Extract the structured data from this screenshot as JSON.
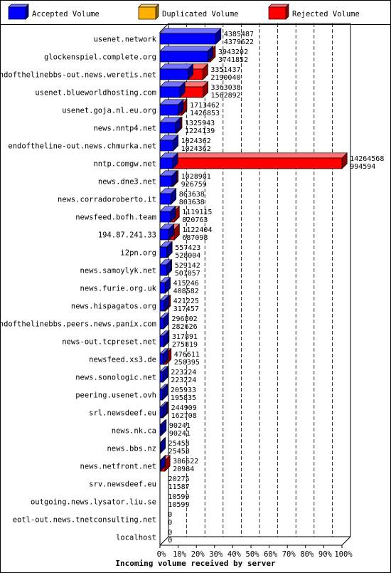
{
  "chart_data": {
    "type": "bar",
    "orientation": "horizontal",
    "stacked": true,
    "xlabel": "Incoming volume received by server",
    "xticks": [
      "0%",
      "10%",
      "20%",
      "30%",
      "40%",
      "50%",
      "60%",
      "70%",
      "80%",
      "90%",
      "100%"
    ],
    "xlim": [
      0,
      14264568
    ],
    "legend": {
      "placement": "top",
      "entries": [
        {
          "name": "Accepted Volume",
          "color": "#0000ff"
        },
        {
          "name": "Duplicated Volume",
          "color": "#ffb000"
        },
        {
          "name": "Rejected Volume",
          "color": "#ff0000"
        }
      ]
    },
    "categories": [
      "usenet.network",
      "glockenspiel.complete.org",
      "endofthelinebbs-out.news.weretis.net",
      "usenet.blueworldhosting.com",
      "usenet.goja.nl.eu.org",
      "news.nntp4.net",
      "endoftheline-out.news.chmurka.net",
      "nntp.comgw.net",
      "news.dne3.net",
      "news.corradoroberto.it",
      "newsfeed.bofh.team",
      "194.87.241.33",
      "i2pn.org",
      "news.samoylyk.net",
      "news.furie.org.uk",
      "news.hispagatos.org",
      "endofthelinebbs.peers.news.panix.com",
      "news-out.tcpreset.net",
      "newsfeed.xs3.de",
      "news.sonologic.net",
      "peering.usenet.ovh",
      "srl.newsdeef.eu",
      "news.nk.ca",
      "news.bbs.nz",
      "news.netfront.net",
      "srv.newsdeef.eu",
      "outgoing.news.lysator.liu.se",
      "eotl-out.news.tnetconsulting.net",
      "localhost"
    ],
    "total": [
      4385487,
      3943202,
      3351437,
      3363038,
      1713462,
      1325943,
      1024362,
      14264568,
      1028901,
      863638,
      1119115,
      1122404,
      557423,
      529142,
      415246,
      421225,
      296802,
      317891,
      476611,
      223224,
      205933,
      244909,
      90241,
      25458,
      386622,
      20275,
      10599,
      0,
      0
    ],
    "accepted": [
      4379622,
      3741852,
      2190040,
      1562892,
      1426853,
      1224139,
      1024362,
      994594,
      926759,
      863638,
      820763,
      687098,
      528004,
      501057,
      408582,
      317457,
      282626,
      275819,
      250395,
      223224,
      195835,
      162708,
      90241,
      25458,
      20984,
      11587,
      10599,
      0,
      0
    ],
    "total_labels": [
      "4385487",
      "3943202",
      "3351437",
      "3363038",
      "1713462",
      "1325943",
      "1024362",
      "14264568",
      "1028901",
      "863638",
      "1119115",
      "1122404",
      "557423",
      "529142",
      "415246",
      "421225",
      "296802",
      "317891",
      "476611",
      "223224",
      "205933",
      "244909",
      "90241",
      "25458",
      "386622",
      "20275",
      "10599",
      "0",
      "0"
    ],
    "accepted_labels": [
      "4379622",
      "3741852",
      "2190040",
      "1562892",
      "1426853",
      "1224139",
      "1024362",
      "994594",
      "926759",
      "863638",
      "820763",
      "687098",
      "528004",
      "501057",
      "408582",
      "317457",
      "282626",
      "275819",
      "250395",
      "223224",
      "195835",
      "162708",
      "90241",
      "25458",
      "20984",
      "11587",
      "10599",
      "0",
      "0"
    ]
  }
}
